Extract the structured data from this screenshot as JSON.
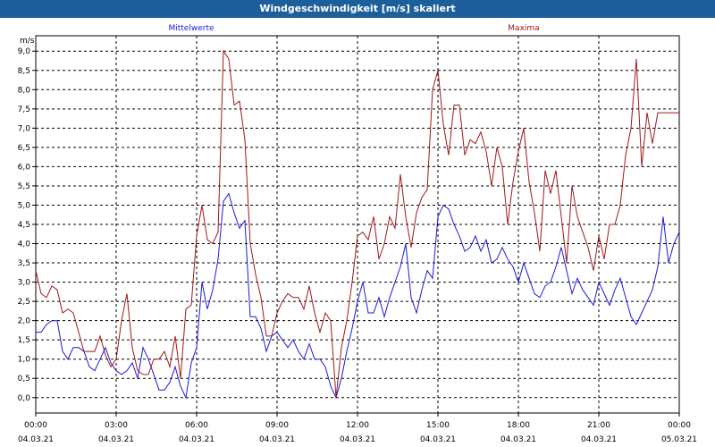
{
  "window": {
    "title": "Windgeschwindigkeit [m/s] skaliert"
  },
  "colors": {
    "title_bar": "#1d5f9a",
    "mean": "#1a1adc",
    "max": "#a01818",
    "grid": "#000000",
    "background": "#ffffff"
  },
  "chart_data": {
    "type": "line",
    "title": "Windgeschwindigkeit [m/s] skaliert",
    "ylabel": "m/s",
    "ylim": [
      -0.4,
      9.4
    ],
    "xlim": [
      0,
      24
    ],
    "y_ticks": [
      "0,0",
      "0,5",
      "1,0",
      "1,5",
      "2,0",
      "2,5",
      "3,0",
      "3,5",
      "4,0",
      "4,5",
      "5,0",
      "5,5",
      "6,0",
      "6,5",
      "7,0",
      "7,5",
      "8,0",
      "8,5",
      "9,0"
    ],
    "x_ticks": [
      {
        "time": "00:00",
        "date": "04.03.21"
      },
      {
        "time": "03:00",
        "date": "04.03.21"
      },
      {
        "time": "06:00",
        "date": "04.03.21"
      },
      {
        "time": "09:00",
        "date": "04.03.21"
      },
      {
        "time": "12:00",
        "date": "04.03.21"
      },
      {
        "time": "15:00",
        "date": "04.03.21"
      },
      {
        "time": "18:00",
        "date": "04.03.21"
      },
      {
        "time": "21:00",
        "date": "04.03.21"
      },
      {
        "time": "00:00",
        "date": "05.03.21"
      }
    ],
    "grid": true,
    "series": [
      {
        "name": "Mittelwerte",
        "color": "#1a1adc",
        "x": [
          0,
          0.2,
          0.4,
          0.6,
          0.8,
          1.0,
          1.2,
          1.4,
          1.6,
          1.8,
          2.0,
          2.2,
          2.4,
          2.6,
          2.8,
          3.0,
          3.2,
          3.4,
          3.6,
          3.8,
          4.0,
          4.2,
          4.4,
          4.6,
          4.8,
          5.0,
          5.2,
          5.4,
          5.6,
          5.8,
          6.0,
          6.2,
          6.4,
          6.6,
          6.8,
          7.0,
          7.2,
          7.4,
          7.6,
          7.8,
          8.0,
          8.2,
          8.4,
          8.6,
          8.8,
          9.0,
          9.2,
          9.4,
          9.6,
          9.8,
          10.0,
          10.2,
          10.4,
          10.6,
          10.8,
          11.0,
          11.2,
          11.4,
          11.6,
          11.8,
          12.0,
          12.2,
          12.4,
          12.6,
          12.8,
          13.0,
          13.2,
          13.4,
          13.6,
          13.8,
          14.0,
          14.2,
          14.4,
          14.6,
          14.8,
          15.0,
          15.2,
          15.4,
          15.6,
          15.8,
          16.0,
          16.2,
          16.4,
          16.6,
          16.8,
          17.0,
          17.2,
          17.4,
          17.6,
          17.8,
          18.0,
          18.2,
          18.4,
          18.6,
          18.8,
          19.0,
          19.2,
          19.4,
          19.6,
          19.8,
          20.0,
          20.2,
          20.4,
          20.6,
          20.8,
          21.0,
          21.2,
          21.4,
          21.6,
          21.8,
          22.0,
          22.2,
          22.4,
          22.6,
          22.8,
          23.0,
          23.2,
          23.4,
          23.6,
          23.8,
          24.0
        ],
        "values": [
          1.7,
          1.7,
          1.9,
          2.0,
          2.0,
          1.2,
          1.0,
          1.3,
          1.3,
          1.2,
          0.8,
          0.7,
          1.0,
          1.3,
          0.9,
          0.7,
          0.6,
          0.7,
          0.9,
          0.5,
          1.3,
          1.0,
          0.6,
          0.2,
          0.2,
          0.4,
          0.8,
          0.3,
          0.0,
          0.9,
          1.3,
          3.0,
          2.3,
          2.8,
          3.6,
          5.1,
          5.3,
          4.8,
          4.4,
          4.6,
          2.1,
          2.1,
          1.8,
          1.2,
          1.6,
          1.7,
          1.5,
          1.3,
          1.5,
          1.2,
          1.0,
          1.4,
          1.0,
          1.0,
          0.8,
          0.3,
          0.0,
          0.5,
          1.2,
          1.8,
          2.5,
          3.0,
          2.2,
          2.2,
          2.6,
          2.1,
          2.6,
          3.0,
          3.4,
          4.0,
          2.6,
          2.2,
          2.8,
          3.3,
          3.1,
          4.7,
          5.0,
          4.9,
          4.5,
          4.2,
          3.8,
          3.9,
          4.2,
          3.8,
          4.1,
          3.5,
          3.6,
          3.9,
          3.6,
          3.4,
          3.0,
          3.5,
          3.1,
          2.7,
          2.6,
          2.9,
          3.0,
          3.4,
          3.9,
          3.3,
          2.7,
          3.1,
          2.8,
          2.6,
          2.4,
          3.0,
          2.7,
          2.4,
          2.8,
          3.1,
          2.6,
          2.1,
          1.9,
          2.2,
          2.5,
          2.8,
          3.4,
          4.7,
          3.5,
          4.0,
          4.3
        ]
      },
      {
        "name": "Maxima",
        "color": "#a01818",
        "x": [
          0,
          0.2,
          0.4,
          0.6,
          0.8,
          1.0,
          1.2,
          1.4,
          1.6,
          1.8,
          2.0,
          2.2,
          2.4,
          2.6,
          2.8,
          3.0,
          3.2,
          3.4,
          3.6,
          3.8,
          4.0,
          4.2,
          4.4,
          4.6,
          4.8,
          5.0,
          5.2,
          5.4,
          5.6,
          5.8,
          6.0,
          6.2,
          6.4,
          6.6,
          6.8,
          7.0,
          7.2,
          7.4,
          7.6,
          7.8,
          8.0,
          8.2,
          8.4,
          8.6,
          8.8,
          9.0,
          9.2,
          9.4,
          9.6,
          9.8,
          10.0,
          10.2,
          10.4,
          10.6,
          10.8,
          11.0,
          11.2,
          11.4,
          11.6,
          11.8,
          12.0,
          12.2,
          12.4,
          12.6,
          12.8,
          13.0,
          13.2,
          13.4,
          13.6,
          13.8,
          14.0,
          14.2,
          14.4,
          14.6,
          14.8,
          15.0,
          15.2,
          15.4,
          15.6,
          15.8,
          16.0,
          16.2,
          16.4,
          16.6,
          16.8,
          17.0,
          17.2,
          17.4,
          17.6,
          17.8,
          18.0,
          18.2,
          18.4,
          18.6,
          18.8,
          19.0,
          19.2,
          19.4,
          19.6,
          19.8,
          20.0,
          20.2,
          20.4,
          20.6,
          20.8,
          21.0,
          21.2,
          21.4,
          21.6,
          21.8,
          22.0,
          22.2,
          22.4,
          22.6,
          22.8,
          23.0,
          23.2,
          23.4,
          23.6,
          23.8,
          24.0
        ],
        "values": [
          3.3,
          2.7,
          2.6,
          2.9,
          2.8,
          2.2,
          2.3,
          2.2,
          1.7,
          1.2,
          1.2,
          1.2,
          1.6,
          1.1,
          0.8,
          1.0,
          2.0,
          2.7,
          1.3,
          0.7,
          0.6,
          0.6,
          1.0,
          1.0,
          1.2,
          0.8,
          1.6,
          0.5,
          2.3,
          2.4,
          4.2,
          5.0,
          4.1,
          4.0,
          4.3,
          9.0,
          8.8,
          7.6,
          7.7,
          6.7,
          4.0,
          3.2,
          2.6,
          1.6,
          1.6,
          2.2,
          2.5,
          2.7,
          2.6,
          2.6,
          2.3,
          2.9,
          2.2,
          1.7,
          2.2,
          2.0,
          0.0,
          1.3,
          2.0,
          3.0,
          4.2,
          4.3,
          4.1,
          4.7,
          3.6,
          4.0,
          4.7,
          4.4,
          5.8,
          4.7,
          3.9,
          4.8,
          5.2,
          5.4,
          8.0,
          8.5,
          7.1,
          6.3,
          7.6,
          7.6,
          6.3,
          6.7,
          6.6,
          6.9,
          6.4,
          5.5,
          6.5,
          6.0,
          4.5,
          5.6,
          6.4,
          7.0,
          5.6,
          4.8,
          3.8,
          5.9,
          5.3,
          5.9,
          4.7,
          3.5,
          5.5,
          4.7,
          4.3,
          3.9,
          3.3,
          4.2,
          3.6,
          4.5,
          4.5,
          5.0,
          6.3,
          7.0,
          8.8,
          6.0,
          7.4,
          6.6,
          7.4,
          7.4,
          7.4,
          7.4,
          7.4
        ]
      }
    ]
  }
}
